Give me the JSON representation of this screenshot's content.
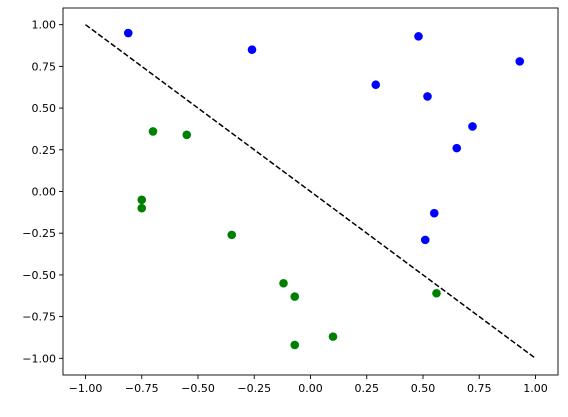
{
  "chart_data": {
    "type": "scatter",
    "title": "",
    "xlabel": "",
    "ylabel": "",
    "xlim": [
      -1.1,
      1.1
    ],
    "ylim": [
      -1.1,
      1.1
    ],
    "xticks": [
      -1.0,
      -0.75,
      -0.5,
      -0.25,
      0.0,
      0.25,
      0.5,
      0.75,
      1.0
    ],
    "yticks": [
      -1.0,
      -0.75,
      -0.5,
      -0.25,
      0.0,
      0.25,
      0.5,
      0.75,
      1.0
    ],
    "xtick_labels": [
      "−1.00",
      "−0.75",
      "−0.50",
      "−0.25",
      "0.00",
      "0.25",
      "0.50",
      "0.75",
      "1.00"
    ],
    "ytick_labels": [
      "−1.00",
      "−0.75",
      "−0.50",
      "−0.25",
      "0.00",
      "0.25",
      "0.50",
      "0.75",
      "1.00"
    ],
    "grid": false,
    "series": [
      {
        "color": "#0000ff",
        "x": [
          -0.81,
          -0.26,
          0.48,
          0.93,
          0.29,
          0.52,
          0.72,
          0.65,
          0.55,
          0.51
        ],
        "y": [
          0.95,
          0.85,
          0.93,
          0.78,
          0.64,
          0.57,
          0.39,
          0.26,
          -0.13,
          -0.29
        ]
      },
      {
        "color": "#008000",
        "x": [
          -0.7,
          -0.55,
          -0.75,
          -0.75,
          -0.35,
          -0.12,
          -0.07,
          -0.07,
          0.1,
          0.56
        ],
        "y": [
          0.36,
          0.34,
          -0.05,
          -0.1,
          -0.26,
          -0.55,
          -0.63,
          -0.92,
          -0.87,
          -0.61
        ]
      }
    ],
    "lines": [
      {
        "color": "#000000",
        "style": "dashed",
        "x": [
          -1.0,
          1.0
        ],
        "y": [
          1.0,
          -1.0
        ]
      }
    ]
  }
}
